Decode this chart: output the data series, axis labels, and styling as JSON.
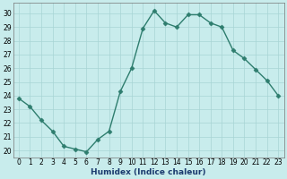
{
  "x": [
    0,
    1,
    2,
    3,
    4,
    5,
    6,
    7,
    8,
    9,
    10,
    11,
    12,
    13,
    14,
    15,
    16,
    17,
    18,
    19,
    20,
    21,
    22,
    23
  ],
  "y": [
    23.8,
    23.2,
    22.2,
    21.4,
    20.3,
    20.1,
    19.9,
    20.8,
    21.4,
    24.3,
    26.0,
    28.9,
    30.2,
    29.3,
    29.0,
    29.9,
    29.9,
    29.3,
    29.0,
    27.3,
    26.7,
    25.9,
    25.1,
    24.0
  ],
  "line_color": "#2e7d6e",
  "bg_color": "#c8ecec",
  "grid_major_color": "#a8d4d4",
  "grid_minor_color": "#b8e0e0",
  "xlabel": "Humidex (Indice chaleur)",
  "ylim": [
    19.5,
    30.75
  ],
  "xlim": [
    -0.5,
    23.5
  ],
  "yticks": [
    20,
    21,
    22,
    23,
    24,
    25,
    26,
    27,
    28,
    29,
    30
  ],
  "xticks": [
    0,
    1,
    2,
    3,
    4,
    5,
    6,
    7,
    8,
    9,
    10,
    11,
    12,
    13,
    14,
    15,
    16,
    17,
    18,
    19,
    20,
    21,
    22,
    23
  ],
  "tick_fontsize": 5.5,
  "xlabel_fontsize": 6.5,
  "xlabel_color": "#1a3a6e",
  "marker_size": 2.5,
  "line_width": 1.0
}
